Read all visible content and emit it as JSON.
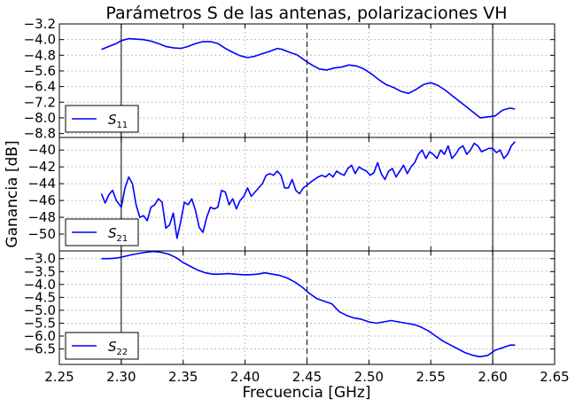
{
  "chart_data": {
    "type": "line",
    "title": "Parámetros S de las antenas, polarizaciones VH",
    "xlabel": "Frecuencia [GHz]",
    "ylabel": "Ganancia [dB]",
    "xlim": [
      2.25,
      2.65
    ],
    "xticks": [
      "2.25",
      "2.30",
      "2.35",
      "2.40",
      "2.45",
      "2.50",
      "2.55",
      "2.60",
      "2.65"
    ],
    "xtick_values": [
      2.25,
      2.3,
      2.35,
      2.4,
      2.45,
      2.5,
      2.55,
      2.6,
      2.65
    ],
    "vlines": [
      {
        "x": 2.3,
        "style": "solid"
      },
      {
        "x": 2.45,
        "style": "dashed"
      },
      {
        "x": 2.6,
        "style": "solid"
      }
    ],
    "grid": true,
    "legend_position": "lower-left",
    "color": "#0000ff",
    "panels": [
      {
        "series_name": "S11",
        "legend_main": "S",
        "legend_sub": "11",
        "ylim": [
          -9.0,
          -3.2
        ],
        "yticks": [
          "−3.2",
          "−4.0",
          "−4.8",
          "−5.6",
          "−6.4",
          "−7.2",
          "−8.0",
          "−8.8"
        ],
        "ytick_values": [
          -3.2,
          -4.0,
          -4.8,
          -5.6,
          -6.4,
          -7.2,
          -8.0,
          -8.8
        ],
        "points": [
          [
            2.284,
            -4.5
          ],
          [
            2.29,
            -4.35
          ],
          [
            2.296,
            -4.2
          ],
          [
            2.3,
            -4.05
          ],
          [
            2.306,
            -3.95
          ],
          [
            2.312,
            -3.98
          ],
          [
            2.318,
            -4.0
          ],
          [
            2.324,
            -4.08
          ],
          [
            2.33,
            -4.2
          ],
          [
            2.336,
            -4.35
          ],
          [
            2.342,
            -4.42
          ],
          [
            2.348,
            -4.45
          ],
          [
            2.354,
            -4.35
          ],
          [
            2.36,
            -4.2
          ],
          [
            2.366,
            -4.1
          ],
          [
            2.372,
            -4.1
          ],
          [
            2.378,
            -4.2
          ],
          [
            2.384,
            -4.45
          ],
          [
            2.39,
            -4.65
          ],
          [
            2.396,
            -4.82
          ],
          [
            2.402,
            -4.92
          ],
          [
            2.408,
            -4.85
          ],
          [
            2.414,
            -4.72
          ],
          [
            2.42,
            -4.6
          ],
          [
            2.426,
            -4.45
          ],
          [
            2.43,
            -4.5
          ],
          [
            2.436,
            -4.65
          ],
          [
            2.442,
            -4.78
          ],
          [
            2.448,
            -5.05
          ],
          [
            2.454,
            -5.3
          ],
          [
            2.46,
            -5.5
          ],
          [
            2.466,
            -5.55
          ],
          [
            2.472,
            -5.45
          ],
          [
            2.478,
            -5.4
          ],
          [
            2.484,
            -5.3
          ],
          [
            2.49,
            -5.35
          ],
          [
            2.496,
            -5.5
          ],
          [
            2.502,
            -5.75
          ],
          [
            2.508,
            -6.05
          ],
          [
            2.514,
            -6.3
          ],
          [
            2.52,
            -6.45
          ],
          [
            2.526,
            -6.65
          ],
          [
            2.532,
            -6.75
          ],
          [
            2.538,
            -6.55
          ],
          [
            2.544,
            -6.3
          ],
          [
            2.55,
            -6.2
          ],
          [
            2.556,
            -6.35
          ],
          [
            2.562,
            -6.6
          ],
          [
            2.568,
            -6.9
          ],
          [
            2.574,
            -7.2
          ],
          [
            2.58,
            -7.5
          ],
          [
            2.586,
            -7.8
          ],
          [
            2.59,
            -8.0
          ],
          [
            2.596,
            -7.95
          ],
          [
            2.602,
            -7.9
          ],
          [
            2.608,
            -7.6
          ],
          [
            2.614,
            -7.5
          ],
          [
            2.618,
            -7.55
          ]
        ]
      },
      {
        "series_name": "S21",
        "legend_main": "S",
        "legend_sub": "21",
        "ylim": [
          -52,
          -38.5
        ],
        "yticks": [
          "−40",
          "−42",
          "−44",
          "−46",
          "−48",
          "−50"
        ],
        "ytick_values": [
          -40,
          -42,
          -44,
          -46,
          -48,
          -50
        ],
        "points": [
          [
            2.284,
            -45.2
          ],
          [
            2.287,
            -46.3
          ],
          [
            2.29,
            -45.3
          ],
          [
            2.293,
            -44.8
          ],
          [
            2.296,
            -46.0
          ],
          [
            2.3,
            -46.8
          ],
          [
            2.303,
            -44.5
          ],
          [
            2.306,
            -43.2
          ],
          [
            2.309,
            -44.0
          ],
          [
            2.312,
            -46.5
          ],
          [
            2.315,
            -48.0
          ],
          [
            2.318,
            -47.8
          ],
          [
            2.321,
            -48.4
          ],
          [
            2.324,
            -46.8
          ],
          [
            2.327,
            -46.5
          ],
          [
            2.33,
            -45.8
          ],
          [
            2.333,
            -46.2
          ],
          [
            2.336,
            -49.3
          ],
          [
            2.339,
            -48.9
          ],
          [
            2.342,
            -47.5
          ],
          [
            2.345,
            -50.5
          ],
          [
            2.348,
            -48.5
          ],
          [
            2.351,
            -46.2
          ],
          [
            2.354,
            -46.5
          ],
          [
            2.357,
            -45.8
          ],
          [
            2.36,
            -47.2
          ],
          [
            2.363,
            -49.2
          ],
          [
            2.366,
            -49.8
          ],
          [
            2.369,
            -48.0
          ],
          [
            2.372,
            -46.8
          ],
          [
            2.375,
            -47.0
          ],
          [
            2.378,
            -46.8
          ],
          [
            2.381,
            -44.8
          ],
          [
            2.384,
            -45.0
          ],
          [
            2.387,
            -46.5
          ],
          [
            2.39,
            -45.8
          ],
          [
            2.393,
            -47.0
          ],
          [
            2.396,
            -46.0
          ],
          [
            2.399,
            -45.5
          ],
          [
            2.402,
            -44.5
          ],
          [
            2.405,
            -45.5
          ],
          [
            2.408,
            -45.0
          ],
          [
            2.411,
            -44.5
          ],
          [
            2.414,
            -44.0
          ],
          [
            2.417,
            -43.0
          ],
          [
            2.42,
            -42.8
          ],
          [
            2.423,
            -43.0
          ],
          [
            2.426,
            -42.5
          ],
          [
            2.429,
            -43.0
          ],
          [
            2.432,
            -44.5
          ],
          [
            2.435,
            -44.5
          ],
          [
            2.438,
            -43.5
          ],
          [
            2.441,
            -44.8
          ],
          [
            2.444,
            -45.2
          ],
          [
            2.447,
            -44.5
          ],
          [
            2.45,
            -44.2
          ],
          [
            2.453,
            -43.8
          ],
          [
            2.456,
            -43.5
          ],
          [
            2.459,
            -43.2
          ],
          [
            2.462,
            -43.0
          ],
          [
            2.465,
            -43.2
          ],
          [
            2.468,
            -42.8
          ],
          [
            2.471,
            -43.2
          ],
          [
            2.474,
            -42.5
          ],
          [
            2.477,
            -42.8
          ],
          [
            2.48,
            -43.0
          ],
          [
            2.483,
            -42.2
          ],
          [
            2.486,
            -41.8
          ],
          [
            2.489,
            -42.8
          ],
          [
            2.492,
            -42.0
          ],
          [
            2.495,
            -42.3
          ],
          [
            2.498,
            -42.5
          ],
          [
            2.501,
            -43.0
          ],
          [
            2.504,
            -42.7
          ],
          [
            2.507,
            -41.5
          ],
          [
            2.51,
            -42.8
          ],
          [
            2.513,
            -43.5
          ],
          [
            2.516,
            -42.5
          ],
          [
            2.519,
            -42.2
          ],
          [
            2.522,
            -43.2
          ],
          [
            2.525,
            -42.5
          ],
          [
            2.528,
            -41.8
          ],
          [
            2.531,
            -42.8
          ],
          [
            2.534,
            -42.0
          ],
          [
            2.537,
            -41.5
          ],
          [
            2.54,
            -40.5
          ],
          [
            2.543,
            -40.0
          ],
          [
            2.546,
            -41.0
          ],
          [
            2.549,
            -40.2
          ],
          [
            2.552,
            -40.5
          ],
          [
            2.555,
            -41.0
          ],
          [
            2.558,
            -40.0
          ],
          [
            2.561,
            -40.5
          ],
          [
            2.564,
            -39.5
          ],
          [
            2.567,
            -41.0
          ],
          [
            2.57,
            -40.5
          ],
          [
            2.573,
            -39.8
          ],
          [
            2.576,
            -39.5
          ],
          [
            2.579,
            -40.5
          ],
          [
            2.582,
            -40.0
          ],
          [
            2.585,
            -39.2
          ],
          [
            2.588,
            -39.5
          ],
          [
            2.591,
            -40.2
          ],
          [
            2.594,
            -40.0
          ],
          [
            2.597,
            -39.8
          ],
          [
            2.6,
            -39.8
          ],
          [
            2.603,
            -40.3
          ],
          [
            2.606,
            -40.0
          ],
          [
            2.609,
            -41.0
          ],
          [
            2.612,
            -40.5
          ],
          [
            2.615,
            -39.5
          ],
          [
            2.618,
            -39.0
          ]
        ]
      },
      {
        "series_name": "S22",
        "legend_main": "S",
        "legend_sub": "22",
        "ylim": [
          -7.1,
          -2.7
        ],
        "yticks": [
          "−3.0",
          "−3.5",
          "−4.0",
          "−4.5",
          "−5.0",
          "−5.5",
          "−6.0",
          "−6.5"
        ],
        "ytick_values": [
          -3.0,
          -3.5,
          -4.0,
          -4.5,
          -5.0,
          -5.5,
          -6.0,
          -6.5
        ],
        "points": [
          [
            2.284,
            -3.0
          ],
          [
            2.29,
            -3.0
          ],
          [
            2.296,
            -2.98
          ],
          [
            2.302,
            -2.92
          ],
          [
            2.308,
            -2.85
          ],
          [
            2.314,
            -2.8
          ],
          [
            2.32,
            -2.75
          ],
          [
            2.326,
            -2.72
          ],
          [
            2.332,
            -2.75
          ],
          [
            2.338,
            -2.82
          ],
          [
            2.344,
            -2.95
          ],
          [
            2.35,
            -3.15
          ],
          [
            2.356,
            -3.3
          ],
          [
            2.362,
            -3.45
          ],
          [
            2.368,
            -3.55
          ],
          [
            2.374,
            -3.6
          ],
          [
            2.38,
            -3.6
          ],
          [
            2.386,
            -3.58
          ],
          [
            2.392,
            -3.6
          ],
          [
            2.398,
            -3.62
          ],
          [
            2.404,
            -3.62
          ],
          [
            2.41,
            -3.6
          ],
          [
            2.416,
            -3.55
          ],
          [
            2.422,
            -3.6
          ],
          [
            2.428,
            -3.65
          ],
          [
            2.434,
            -3.75
          ],
          [
            2.44,
            -3.9
          ],
          [
            2.446,
            -4.1
          ],
          [
            2.452,
            -4.35
          ],
          [
            2.458,
            -4.55
          ],
          [
            2.464,
            -4.65
          ],
          [
            2.47,
            -4.75
          ],
          [
            2.476,
            -5.05
          ],
          [
            2.482,
            -5.2
          ],
          [
            2.488,
            -5.3
          ],
          [
            2.494,
            -5.35
          ],
          [
            2.5,
            -5.45
          ],
          [
            2.506,
            -5.5
          ],
          [
            2.512,
            -5.45
          ],
          [
            2.518,
            -5.4
          ],
          [
            2.524,
            -5.45
          ],
          [
            2.53,
            -5.5
          ],
          [
            2.536,
            -5.55
          ],
          [
            2.542,
            -5.65
          ],
          [
            2.548,
            -5.8
          ],
          [
            2.554,
            -6.0
          ],
          [
            2.56,
            -6.2
          ],
          [
            2.566,
            -6.35
          ],
          [
            2.572,
            -6.5
          ],
          [
            2.578,
            -6.65
          ],
          [
            2.584,
            -6.75
          ],
          [
            2.59,
            -6.8
          ],
          [
            2.596,
            -6.75
          ],
          [
            2.602,
            -6.55
          ],
          [
            2.608,
            -6.45
          ],
          [
            2.614,
            -6.35
          ],
          [
            2.618,
            -6.35
          ]
        ]
      }
    ]
  }
}
